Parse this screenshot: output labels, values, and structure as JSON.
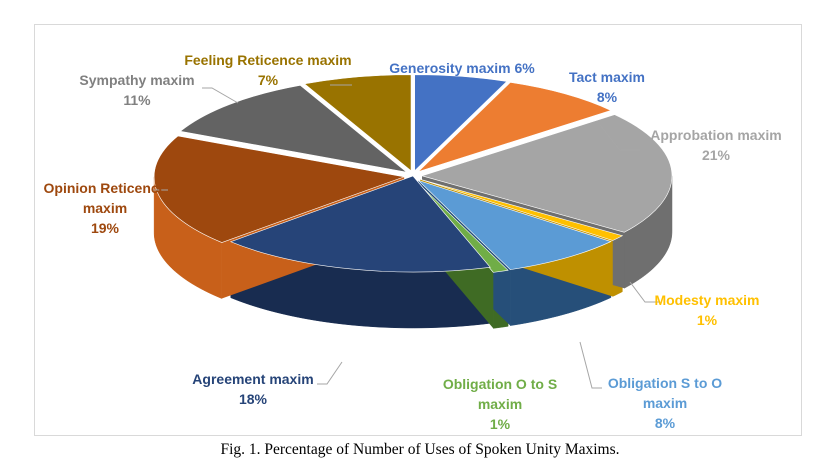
{
  "chart_data": {
    "type": "pie",
    "style": "3d-exploded",
    "legend": "none",
    "slices": [
      {
        "label_lines": [
          "Generosity maxim 6%"
        ],
        "value": 6,
        "color": "#4472c4",
        "dark": "#2f5597"
      },
      {
        "label_lines": [
          "Tact maxim",
          "8%"
        ],
        "value": 8,
        "color": "#ed7d31",
        "dark": "#b95e1e"
      },
      {
        "label_lines": [
          "Approbation maxim",
          "21%"
        ],
        "value": 21,
        "color": "#a5a5a5",
        "dark": "#6f6f6f"
      },
      {
        "label_lines": [
          "Modesty maxim",
          "1%"
        ],
        "value": 1,
        "color": "#ffc000",
        "dark": "#bf9000"
      },
      {
        "label_lines": [
          "Obligation S to O",
          "maxim",
          "8%"
        ],
        "value": 8,
        "color": "#5b9bd5",
        "dark": "#264f79"
      },
      {
        "label_lines": [
          "Obligation O to S",
          "maxim",
          "1%"
        ],
        "value": 1,
        "color": "#70ad47",
        "dark": "#3f6b24"
      },
      {
        "label_lines": [
          "Agreement maxim",
          "18%"
        ],
        "value": 18,
        "color": "#264478",
        "dark": "#182c50"
      },
      {
        "label_lines": [
          "Opinion Reticence",
          "maxim",
          "19%"
        ],
        "value": 19,
        "color": "#9e480e",
        "dark": "#c8601a"
      },
      {
        "label_lines": [
          "Sympathy maxim",
          "11%"
        ],
        "value": 11,
        "color": "#636363",
        "dark": "#4a4a4a"
      },
      {
        "label_lines": [
          "Feeling Reticence maxim",
          "7%"
        ],
        "value": 7,
        "color": "#997300",
        "dark": "#6e5300"
      }
    ]
  },
  "caption": "Fig. 1. Percentage of Number of Uses of Spoken Unity Maxims."
}
